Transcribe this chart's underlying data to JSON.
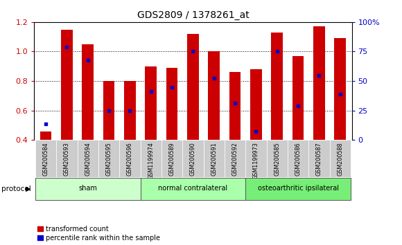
{
  "title": "GDS2809 / 1378261_at",
  "categories": [
    "GSM200584",
    "GSM200593",
    "GSM200594",
    "GSM200595",
    "GSM200596",
    "GSM1199974",
    "GSM200589",
    "GSM200590",
    "GSM200591",
    "GSM200592",
    "GSM1199973",
    "GSM200585",
    "GSM200586",
    "GSM200587",
    "GSM200588"
  ],
  "red_values": [
    0.46,
    1.15,
    1.05,
    0.8,
    0.8,
    0.9,
    0.89,
    1.12,
    1.0,
    0.86,
    0.88,
    1.13,
    0.97,
    1.17,
    1.09
  ],
  "blue_values": [
    0.51,
    1.03,
    0.94,
    0.6,
    0.6,
    0.73,
    0.76,
    1.0,
    0.82,
    0.65,
    0.46,
    1.0,
    0.63,
    0.84,
    0.71
  ],
  "groups": [
    {
      "label": "sham",
      "start": 0,
      "end": 5,
      "color": "#ccffcc"
    },
    {
      "label": "normal contralateral",
      "start": 5,
      "end": 10,
      "color": "#aaffaa"
    },
    {
      "label": "osteoarthritic ipsilateral",
      "start": 10,
      "end": 15,
      "color": "#77ee77"
    }
  ],
  "ylim_left": [
    0.4,
    1.2
  ],
  "ylim_right": [
    0,
    100
  ],
  "left_ticks": [
    0.4,
    0.6,
    0.8,
    1.0,
    1.2
  ],
  "right_ticks": [
    0,
    25,
    50,
    75,
    100
  ],
  "bar_color": "#cc0000",
  "dot_color": "#0000cc",
  "background_color": "#ffffff",
  "xtick_bg_color": "#cccccc",
  "legend_red_label": "transformed count",
  "legend_blue_label": "percentile rank within the sample",
  "protocol_label": "protocol"
}
